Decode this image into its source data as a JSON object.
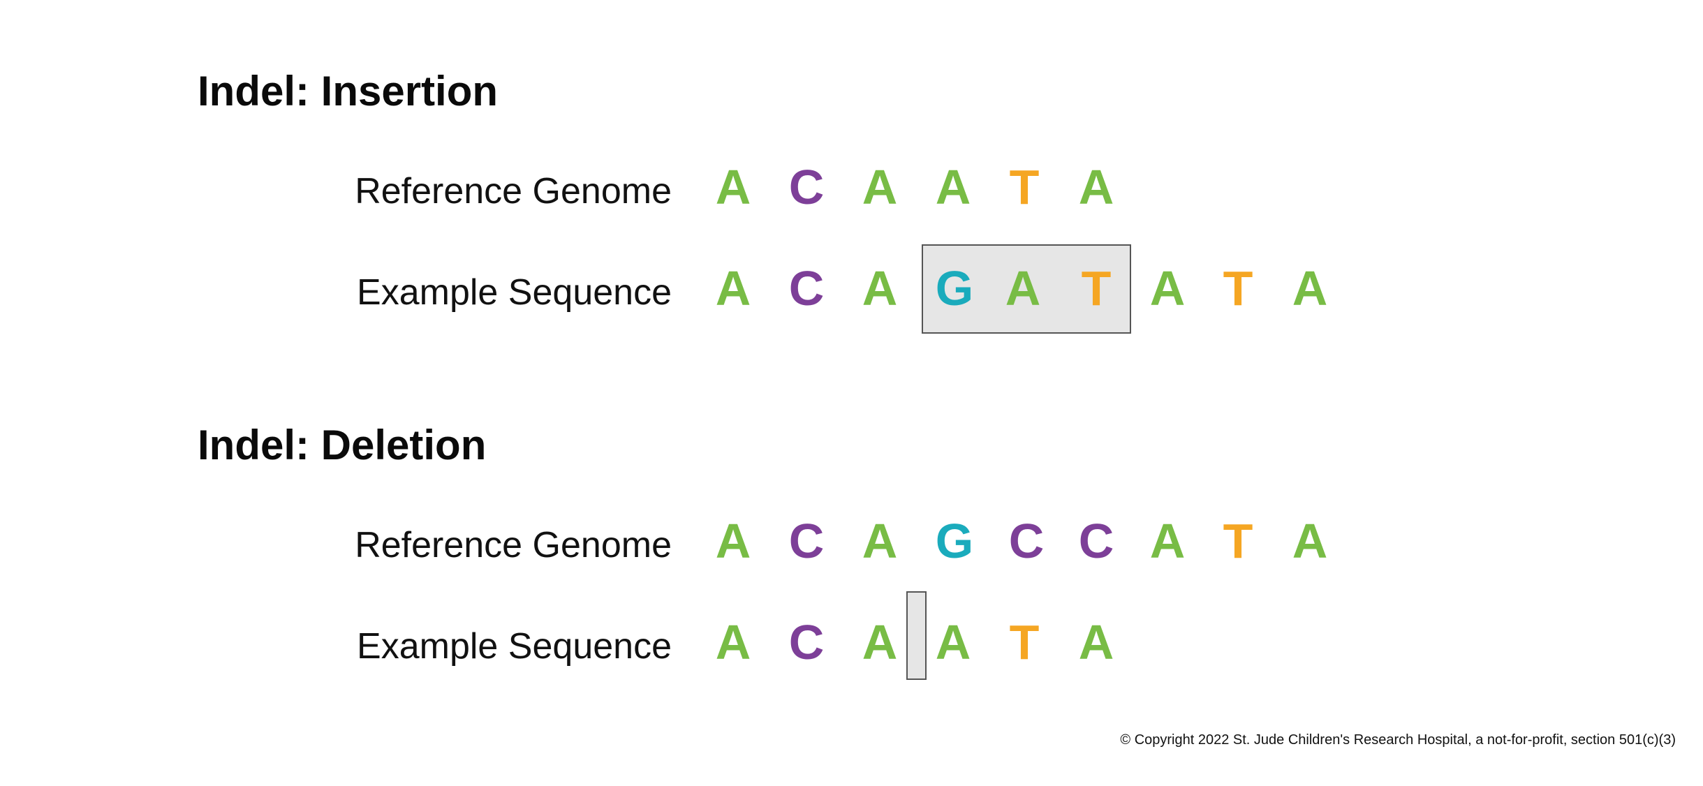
{
  "colors": {
    "A": "#78bc45",
    "C": "#7d3f98",
    "G": "#1aabbc",
    "T": "#f5a623"
  },
  "insertion": {
    "title": "Indel: Insertion",
    "reference": {
      "label": "Reference Genome",
      "bases": [
        "A",
        "C",
        "A",
        "A",
        "T",
        "A"
      ]
    },
    "example": {
      "label": "Example Sequence",
      "bases": [
        "A",
        "C",
        "A",
        "G",
        "A",
        "T",
        "A",
        "T",
        "A"
      ],
      "highlighted_bases": "GAT"
    }
  },
  "deletion": {
    "title": "Indel: Deletion",
    "reference": {
      "label": "Reference Genome",
      "bases": [
        "A",
        "C",
        "A",
        "G",
        "C",
        "C",
        "A",
        "T",
        "A"
      ]
    },
    "example": {
      "label": "Example Sequence",
      "bases": [
        "A",
        "C",
        "A",
        "A",
        "T",
        "A"
      ],
      "gap_after_base": 3
    }
  },
  "footer": {
    "copyright": "© Copyright 2022 St. Jude Children's Research Hospital, a not-for-profit, section 501(c)(3)"
  }
}
